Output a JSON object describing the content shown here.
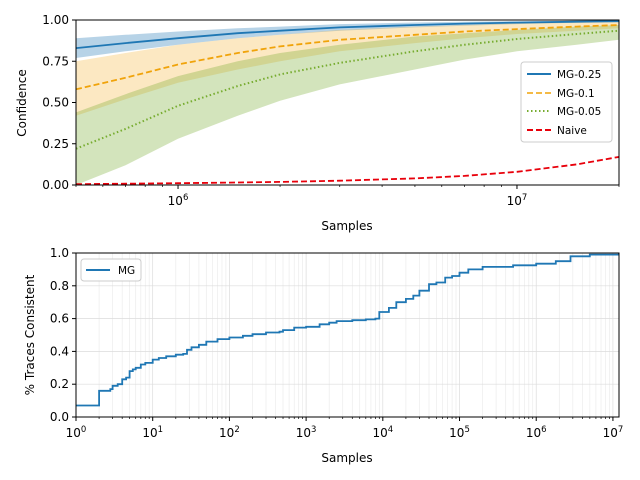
{
  "chart_data": [
    {
      "type": "line",
      "title": "",
      "xlabel": "Samples",
      "ylabel": "Confidence",
      "xscale": "log",
      "xlim": [
        500000,
        20000000
      ],
      "ylim": [
        0,
        1
      ],
      "xticks": [
        {
          "value": 1000000,
          "label": "10^6"
        },
        {
          "value": 10000000,
          "label": "10^7"
        }
      ],
      "yticks": [
        0.0,
        0.25,
        0.5,
        0.75,
        1.0
      ],
      "ytick_labels": [
        "0.00",
        "0.25",
        "0.50",
        "0.75",
        "1.00"
      ],
      "legend": "center-right",
      "x": [
        500000,
        700000,
        1000000,
        1500000,
        2000000,
        3000000,
        5000000,
        7000000,
        10000000,
        15000000,
        20000000
      ],
      "series": [
        {
          "name": "MG-0.25",
          "color": "#1f77b4",
          "style": "solid",
          "values": [
            0.83,
            0.86,
            0.89,
            0.92,
            0.935,
            0.955,
            0.97,
            0.978,
            0.984,
            0.99,
            0.993
          ],
          "band_low": [
            0.77,
            0.81,
            0.85,
            0.89,
            0.91,
            0.935,
            0.955,
            0.965,
            0.975,
            0.983,
            0.987
          ],
          "band_high": [
            0.89,
            0.91,
            0.93,
            0.95,
            0.96,
            0.975,
            0.985,
            0.99,
            0.993,
            0.996,
            0.998
          ]
        },
        {
          "name": "MG-0.1",
          "color": "#f0a30a",
          "style": "dashed",
          "values": [
            0.58,
            0.65,
            0.73,
            0.8,
            0.84,
            0.88,
            0.91,
            0.93,
            0.945,
            0.96,
            0.97
          ],
          "band_low": [
            0.42,
            0.52,
            0.62,
            0.7,
            0.75,
            0.81,
            0.86,
            0.89,
            0.915,
            0.935,
            0.95
          ],
          "band_high": [
            0.75,
            0.8,
            0.85,
            0.89,
            0.91,
            0.94,
            0.96,
            0.97,
            0.98,
            0.985,
            0.99
          ]
        },
        {
          "name": "MG-0.05",
          "color": "#77ac30",
          "style": "dotted",
          "values": [
            0.22,
            0.34,
            0.48,
            0.6,
            0.67,
            0.74,
            0.81,
            0.85,
            0.885,
            0.915,
            0.935
          ],
          "band_low": [
            0.0,
            0.12,
            0.28,
            0.42,
            0.51,
            0.61,
            0.7,
            0.76,
            0.81,
            0.85,
            0.88
          ],
          "band_high": [
            0.44,
            0.55,
            0.66,
            0.75,
            0.8,
            0.85,
            0.9,
            0.92,
            0.94,
            0.96,
            0.97
          ]
        },
        {
          "name": "Naive",
          "color": "#e8000b",
          "style": "dashed",
          "values": [
            0.005,
            0.008,
            0.011,
            0.015,
            0.019,
            0.026,
            0.04,
            0.055,
            0.08,
            0.125,
            0.17
          ]
        }
      ]
    },
    {
      "type": "line",
      "title": "",
      "xlabel": "Samples",
      "ylabel": "% Traces Consistent",
      "xscale": "log",
      "xlim": [
        1,
        12000000
      ],
      "ylim": [
        0,
        1
      ],
      "xticks": [
        {
          "value": 1,
          "label": "10^0"
        },
        {
          "value": 10,
          "label": "10^1"
        },
        {
          "value": 100,
          "label": "10^2"
        },
        {
          "value": 1000,
          "label": "10^3"
        },
        {
          "value": 10000,
          "label": "10^4"
        },
        {
          "value": 100000,
          "label": "10^5"
        },
        {
          "value": 1000000,
          "label": "10^6"
        },
        {
          "value": 10000000,
          "label": "10^7"
        }
      ],
      "yticks": [
        0.0,
        0.2,
        0.4,
        0.6,
        0.8,
        1.0
      ],
      "ytick_labels": [
        "0.0",
        "0.2",
        "0.4",
        "0.6",
        "0.8",
        "1.0"
      ],
      "legend": "top-left",
      "series": [
        {
          "name": "MG",
          "color": "#1f77b4",
          "style": "steps",
          "x": [
            1,
            2,
            2,
            2.8,
            3,
            3.5,
            4,
            4.5,
            5,
            5.5,
            6,
            7,
            8,
            10,
            12,
            15,
            20,
            25,
            28,
            32,
            40,
            50,
            70,
            100,
            150,
            200,
            300,
            450,
            500,
            700,
            1000,
            1500,
            2000,
            2500,
            4000,
            6000,
            8000,
            9000,
            12000,
            15000,
            20000,
            25000,
            30000,
            40000,
            50000,
            65000,
            80000,
            100000,
            130000,
            200000,
            500000,
            1000000,
            1800000,
            2800000,
            5000000,
            12000000
          ],
          "values": [
            0.07,
            0.08,
            0.16,
            0.17,
            0.19,
            0.2,
            0.23,
            0.24,
            0.28,
            0.29,
            0.3,
            0.32,
            0.33,
            0.35,
            0.36,
            0.37,
            0.38,
            0.385,
            0.41,
            0.425,
            0.44,
            0.46,
            0.475,
            0.485,
            0.495,
            0.505,
            0.515,
            0.52,
            0.53,
            0.545,
            0.55,
            0.565,
            0.575,
            0.585,
            0.59,
            0.595,
            0.6,
            0.64,
            0.665,
            0.7,
            0.72,
            0.74,
            0.77,
            0.81,
            0.82,
            0.85,
            0.86,
            0.88,
            0.9,
            0.915,
            0.925,
            0.935,
            0.95,
            0.98,
            0.99,
            1.0
          ]
        }
      ]
    }
  ]
}
